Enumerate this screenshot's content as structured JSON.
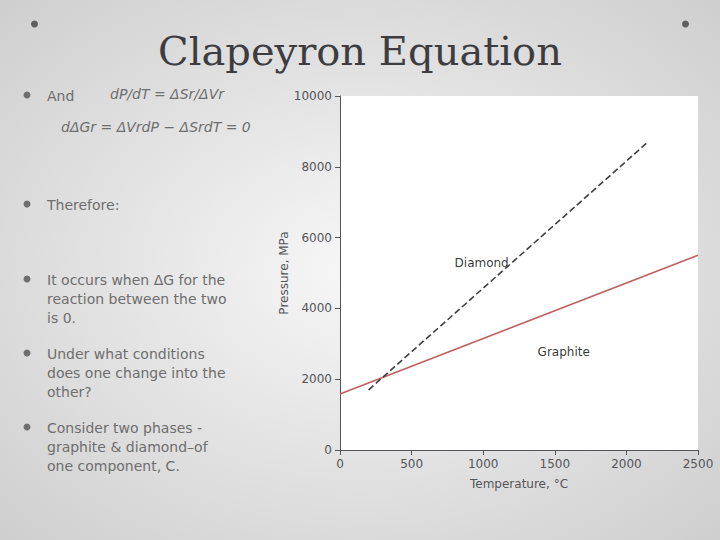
{
  "chart_data": {
    "type": "line",
    "title": "Clapeyron Equation",
    "xlabel": "Temperature, °C",
    "ylabel": "Pressure, MPa",
    "xlim": [
      0,
      2500
    ],
    "ylim": [
      0,
      10000
    ],
    "xticks": [
      0,
      500,
      1000,
      1500,
      2000,
      2500
    ],
    "yticks": [
      0,
      2000,
      4000,
      6000,
      8000,
      10000
    ],
    "grid": false,
    "series": [
      {
        "color": "#C06060",
        "line_style": "solid",
        "x": [
          0,
          2500
        ],
        "values": [
          1580,
          5500
        ]
      },
      {
        "color": "#404040",
        "line_style": "dashed",
        "x": [
          200,
          2150
        ],
        "values": [
          1700,
          8700
        ]
      }
    ],
    "annotations": [
      {
        "text": "Consider two phases -\ngraphite & diamond–of\none component, C."
      },
      {
        "text": "Under what conditions\ndoes one change into the\nother?"
      },
      {
        "text": "It occurs when ΔG for the\nreaction between the two\nis 0."
      },
      {
        "text": "Therefore:"
      },
      {
        "text": "dΔGr = ΔVrdP − ΔSrdT = 0"
      },
      {
        "text": "And"
      },
      {
        "text": "dP/dT = ΔSr/ΔVr"
      },
      {
        "text": "Diamond",
        "x": 800,
        "y": 5100
      },
      {
        "text": "Graphite",
        "x": 1380,
        "y": 2600
      }
    ]
  }
}
